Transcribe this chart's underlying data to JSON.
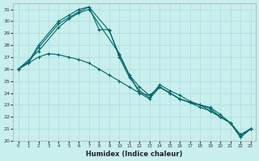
{
  "xlabel": "Humidex (Indice chaleur)",
  "ylabel": "",
  "bg_color": "#c8eeed",
  "line_color": "#006666",
  "grid_color": "#aadddd",
  "xlim": [
    -0.5,
    23.5
  ],
  "ylim": [
    20,
    31.5
  ],
  "yticks": [
    20,
    21,
    22,
    23,
    24,
    25,
    26,
    27,
    28,
    29,
    30,
    31
  ],
  "xticks": [
    0,
    1,
    2,
    3,
    4,
    5,
    6,
    7,
    8,
    9,
    10,
    11,
    12,
    13,
    14,
    15,
    16,
    17,
    18,
    19,
    20,
    21,
    22,
    23
  ],
  "series": [
    {
      "x": [
        0,
        1,
        2,
        4,
        5,
        6,
        7,
        8,
        9,
        10,
        11,
        12,
        13,
        14,
        15,
        16,
        17,
        18,
        19,
        20,
        21,
        22,
        23
      ],
      "y": [
        26.0,
        26.6,
        28.0,
        30.0,
        30.5,
        31.0,
        31.2,
        29.3,
        29.3,
        27.0,
        25.3,
        24.2,
        23.6,
        24.7,
        24.2,
        23.8,
        23.3,
        23.0,
        22.8,
        22.2,
        21.5,
        20.3,
        21.0
      ]
    },
    {
      "x": [
        0,
        1,
        2,
        4,
        5,
        6,
        7,
        9,
        10,
        11,
        12,
        13,
        14,
        15,
        16,
        17,
        18,
        19,
        20,
        21,
        22,
        23
      ],
      "y": [
        26.0,
        26.5,
        27.8,
        29.8,
        30.3,
        30.8,
        31.2,
        29.2,
        27.2,
        25.5,
        24.0,
        23.5,
        24.5,
        24.0,
        23.5,
        23.2,
        23.0,
        22.5,
        22.0,
        21.5,
        20.5,
        21.0
      ]
    },
    {
      "x": [
        0,
        2,
        4,
        5,
        6,
        7,
        10,
        11,
        12,
        13,
        14,
        15,
        16,
        17,
        18,
        19,
        20,
        21,
        22,
        23
      ],
      "y": [
        26.0,
        27.5,
        29.5,
        30.2,
        30.7,
        31.0,
        27.3,
        25.5,
        24.5,
        23.8,
        24.5,
        24.0,
        23.5,
        23.2,
        23.0,
        22.7,
        22.0,
        21.5,
        20.3,
        21.0
      ]
    },
    {
      "x": [
        0,
        1,
        2,
        3,
        4,
        5,
        6,
        7,
        8,
        9,
        10,
        11,
        12,
        13,
        14,
        15,
        16,
        17,
        18,
        19,
        20,
        21,
        22,
        23
      ],
      "y": [
        26.0,
        26.5,
        27.0,
        27.3,
        27.2,
        27.0,
        26.8,
        26.5,
        26.0,
        25.5,
        25.0,
        24.5,
        24.0,
        23.8,
        24.5,
        24.0,
        23.5,
        23.2,
        22.8,
        22.5,
        22.0,
        21.5,
        20.5,
        21.0
      ]
    }
  ]
}
